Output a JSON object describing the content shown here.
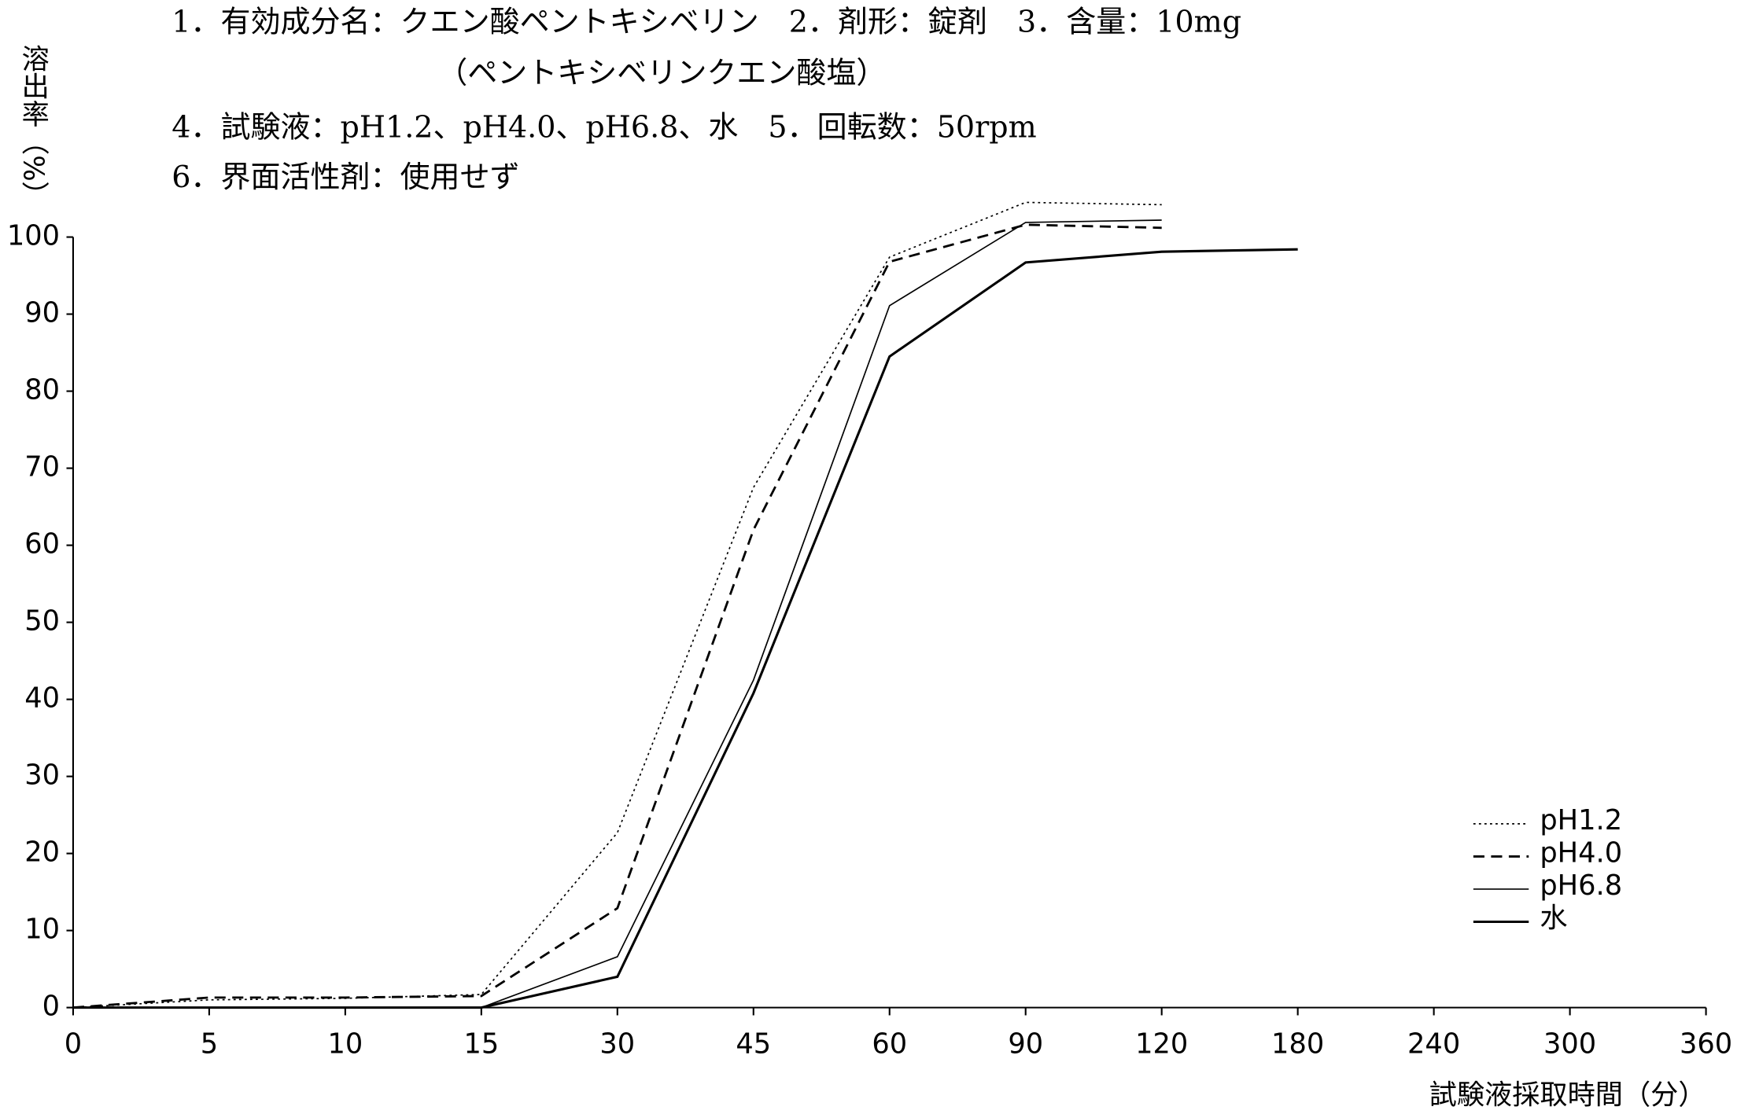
{
  "chart_data": {
    "type": "line",
    "title": [
      "1．有効成分名：クエン酸ペントキシベリン　2．剤形：錠剤　3．含量：10mg",
      "（ペントキシベリンクエン酸塩）",
      "4．試験液：pH1.2、pH4.0、pH6.8、水　5．回転数：50rpm",
      "6．界面活性剤：使用せず"
    ],
    "y_label": "溶出率（%）",
    "x_label": "試験液採取時間（分）",
    "categories": [
      "0",
      "5",
      "10",
      "15",
      "30",
      "45",
      "60",
      "90",
      "120",
      "180",
      "240",
      "300",
      "360"
    ],
    "series": [
      {
        "name": "pH1.2",
        "color": "#000000",
        "style": "dotted",
        "values": [
          0,
          1,
          1.2,
          1.7,
          22.7,
          67.5,
          97.4,
          104.5,
          104.2,
          null,
          null,
          null,
          null
        ]
      },
      {
        "name": "pH4.0",
        "color": "#000000",
        "style": "dashed",
        "values": [
          0,
          1.3,
          1.3,
          1.5,
          12.9,
          62,
          96.8,
          101.6,
          101.2,
          null,
          null,
          null,
          null
        ]
      },
      {
        "name": "pH6.8",
        "color": "#000000",
        "style": "solid",
        "values": [
          0,
          0,
          0,
          0,
          6.6,
          42.5,
          91.1,
          101.9,
          102.2,
          null,
          null,
          null,
          null
        ]
      },
      {
        "name": "水",
        "color": "#000000",
        "style": "thick",
        "values": [
          0,
          0,
          0,
          0,
          4.0,
          40.8,
          84.5,
          96.7,
          98.1,
          98.4,
          null,
          null,
          null
        ]
      }
    ],
    "ylim": [
      0,
      100
    ],
    "yticks": [
      0,
      10,
      20,
      30,
      40,
      50,
      60,
      70,
      80,
      90,
      100
    ],
    "grid": false,
    "legend": "lower right"
  }
}
